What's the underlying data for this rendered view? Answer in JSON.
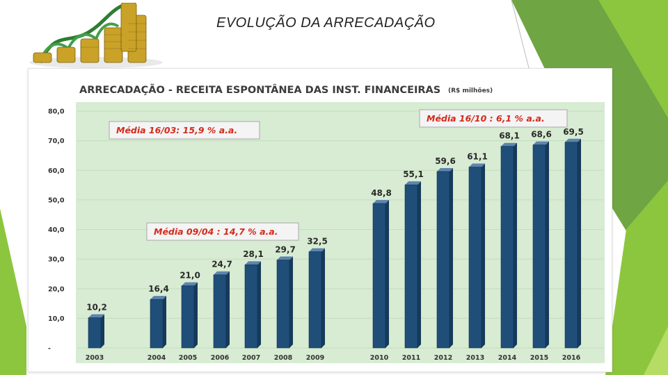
{
  "slide": {
    "title": "EVOLUÇÃO DA ARRECADAÇÃO"
  },
  "colors": {
    "bar_front": "#1f4e79",
    "bar_side": "#163a5a",
    "bar_top": "#5d86ad",
    "plot_bg": "#d8ebd3",
    "annotation_text": "#d42a1c",
    "accent_green": "#8cc63e"
  },
  "chart_data": {
    "type": "bar",
    "title": "ARRECADAÇÃO - RECEITA ESPONTÂNEA DAS INST. FINANCEIRAS",
    "subtitle": "(R$ milhões)",
    "categories": [
      "2003",
      "2004",
      "2005",
      "2006",
      "2007",
      "2008",
      "2009",
      "2010",
      "2011",
      "2012",
      "2013",
      "2014",
      "2015",
      "2016"
    ],
    "values": [
      10.2,
      16.4,
      21.0,
      24.7,
      28.1,
      29.7,
      32.5,
      48.8,
      55.1,
      59.6,
      61.1,
      68.1,
      68.6,
      69.5
    ],
    "value_labels": [
      "10,2",
      "16,4",
      "21,0",
      "24,7",
      "28,1",
      "29,7",
      "32,5",
      "48,8",
      "55,1",
      "59,6",
      "61,1",
      "68,1",
      "68,6",
      "69,5"
    ],
    "ylim": [
      0,
      80
    ],
    "yticks": [
      "-",
      "10,0",
      "20,0",
      "30,0",
      "40,0",
      "50,0",
      "60,0",
      "70,0",
      "80,0"
    ],
    "grid": true,
    "legend": "none",
    "annotations": [
      {
        "text": "Média 16/03: 15,9 % a.a."
      },
      {
        "text": "Média 09/04 : 14,7 % a.a."
      },
      {
        "text": "Média 16/10 : 6,1 % a.a."
      }
    ]
  }
}
